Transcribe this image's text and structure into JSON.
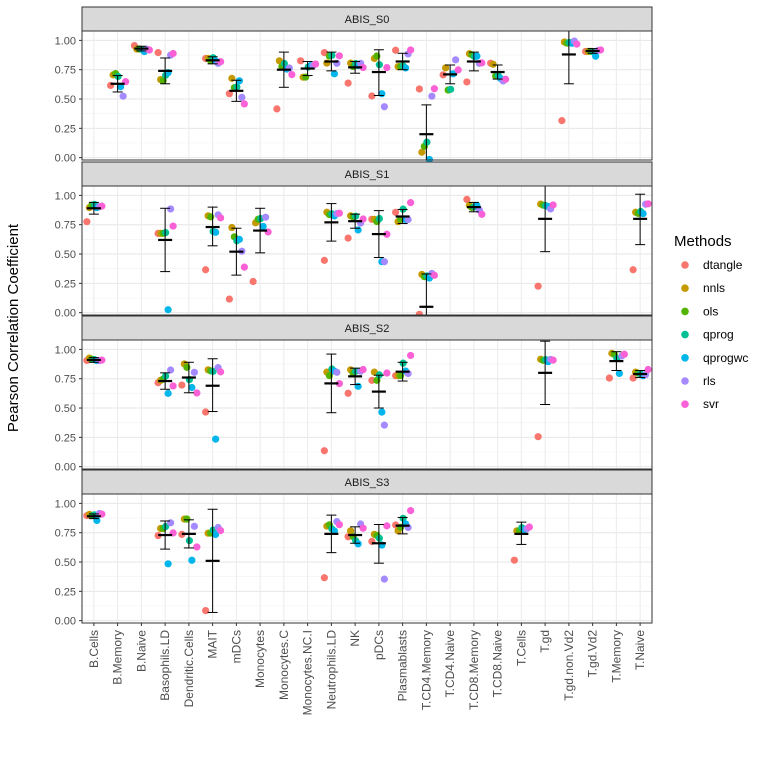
{
  "chart_data": {
    "type": "scatter",
    "ylabel": "Pearson Correlation Coefficient",
    "xlabel": "",
    "ylim": [
      -0.02,
      1.08
    ],
    "yticks": [
      0.0,
      0.25,
      0.5,
      0.75,
      1.0
    ],
    "ytick_labels": [
      "0.00",
      "0.25",
      "0.50",
      "0.75",
      "1.00"
    ],
    "grid": true,
    "legend_position": "right",
    "legend_title": "Methods",
    "series_names": [
      "dtangle",
      "nnls",
      "ols",
      "qprog",
      "qprogwc",
      "rls",
      "svr"
    ],
    "colors": {
      "dtangle": "#F8766D",
      "nnls": "#C49A00",
      "ols": "#53B400",
      "qprog": "#00C094",
      "qprogwc": "#00B6EB",
      "rls": "#A58AFF",
      "svr": "#FB61D7"
    },
    "categories": [
      "B.Cells",
      "B.Memory",
      "B.Naive",
      "Basophils.LD",
      "Dendritic.Cells",
      "MAIT",
      "mDCs",
      "Monocytes",
      "Monocytes.C",
      "Monocytes.NC.I",
      "Neutrophils.LD",
      "NK",
      "pDCs",
      "Plasmablasts",
      "T.CD4.Memory",
      "T.CD4.Naive",
      "T.CD8.Memory",
      "T.CD8.Naive",
      "T.Cells",
      "T.gd",
      "T.gd.non.Vd2",
      "T.gd.Vd2",
      "T.Memory",
      "T.Naive"
    ],
    "panels": [
      {
        "title": "ABIS_S0",
        "data": {
          "B.Memory": [
            0.62,
            0.7,
            0.72,
            0.69,
            0.61,
            0.52,
            0.65
          ],
          "B.Naive": [
            0.96,
            0.92,
            0.93,
            0.92,
            0.91,
            0.92,
            0.92
          ],
          "Basophils.LD": [
            0.9,
            0.66,
            0.66,
            0.7,
            0.73,
            0.87,
            0.89
          ],
          "MAIT": [
            0.85,
            0.84,
            0.83,
            0.85,
            0.83,
            0.8,
            0.82
          ],
          "mDCs": [
            0.55,
            0.67,
            0.6,
            0.6,
            0.66,
            0.51,
            0.46
          ],
          "Monocytes.C": [
            0.42,
            0.82,
            0.78,
            0.8,
            0.76,
            0.76,
            0.71
          ],
          "Monocytes.NC.I": [
            0.83,
            0.68,
            0.69,
            0.77,
            0.79,
            0.78,
            0.8
          ],
          "Neutrophils.LD": [
            0.9,
            0.8,
            0.87,
            0.87,
            0.72,
            0.8,
            0.87
          ],
          "NK": [
            0.64,
            0.8,
            0.78,
            0.8,
            0.79,
            0.8,
            0.77
          ],
          "pDCs": [
            0.53,
            0.84,
            0.87,
            0.79,
            0.55,
            0.43,
            0.77
          ],
          "Plasmablasts": [
            0.92,
            0.77,
            0.78,
            0.78,
            0.77,
            0.88,
            0.92
          ],
          "T.CD4.Memory": [
            0.59,
            0.04,
            0.1,
            0.13,
            -0.01,
            0.52,
            0.59
          ],
          "T.CD4.Naive": [
            0.71,
            0.76,
            0.58,
            0.58,
            0.72,
            0.83,
            0.75
          ],
          "T.CD8.Memory": [
            0.65,
            0.88,
            0.88,
            0.86,
            0.87,
            0.8,
            0.81
          ],
          "T.CD8.Naive": [
            0.81,
            0.79,
            0.7,
            0.7,
            0.68,
            0.65,
            0.67
          ],
          "T.gd.non.Vd2": [
            0.32,
            0.98,
            0.98,
            0.98,
            0.98,
            0.99,
            0.97
          ],
          "T.gd.Vd2": [
            0.91,
            0.9,
            0.91,
            0.9,
            0.87,
            0.91,
            0.92
          ]
        },
        "summary": {
          "B.Memory": [
            0.56,
            0.63,
            0.7
          ],
          "B.Naive": [
            0.91,
            0.93,
            0.95
          ],
          "Basophils.LD": [
            0.63,
            0.74,
            0.85
          ],
          "MAIT": [
            0.8,
            0.83,
            0.86
          ],
          "mDCs": [
            0.48,
            0.57,
            0.66
          ],
          "Monocytes.C": [
            0.6,
            0.75,
            0.9
          ],
          "Monocytes.NC.I": [
            0.7,
            0.76,
            0.82
          ],
          "Neutrophils.LD": [
            0.74,
            0.82,
            0.9
          ],
          "NK": [
            0.72,
            0.77,
            0.82
          ],
          "pDCs": [
            0.53,
            0.73,
            0.92
          ],
          "Plasmablasts": [
            0.75,
            0.82,
            0.89
          ],
          "T.CD4.Memory": [
            -0.05,
            0.2,
            0.45
          ],
          "T.CD4.Naive": [
            0.63,
            0.71,
            0.79
          ],
          "T.CD8.Memory": [
            0.74,
            0.82,
            0.9
          ],
          "T.CD8.Naive": [
            0.67,
            0.73,
            0.79
          ],
          "T.gd.non.Vd2": [
            0.63,
            0.88,
            1.12
          ],
          "T.gd.Vd2": [
            0.89,
            0.91,
            0.93
          ]
        }
      },
      {
        "title": "ABIS_S1",
        "data": {
          "B.Cells": [
            0.78,
            0.89,
            0.92,
            0.92,
            0.9,
            0.9,
            0.91
          ],
          "Basophils.LD": [
            0.68,
            0.67,
            0.68,
            0.68,
            0.03,
            0.88,
            0.74
          ],
          "MAIT": [
            0.37,
            0.82,
            0.82,
            0.69,
            0.69,
            0.83,
            0.81
          ],
          "mDCs": [
            0.12,
            0.72,
            0.65,
            0.61,
            0.63,
            0.52,
            0.39
          ],
          "Monocytes": [
            0.27,
            0.76,
            0.8,
            0.8,
            0.74,
            0.81,
            0.69
          ],
          "Neutrophils.LD": [
            0.45,
            0.85,
            0.84,
            0.84,
            0.83,
            0.84,
            0.85
          ],
          "NK": [
            0.64,
            0.82,
            0.82,
            0.82,
            0.71,
            0.76,
            0.8
          ],
          "pDCs": [
            0.8,
            0.79,
            0.78,
            0.8,
            0.44,
            0.43,
            0.67
          ],
          "Plasmablasts": [
            0.86,
            0.77,
            0.8,
            0.88,
            0.8,
            0.79,
            0.94
          ],
          "T.CD4.Memory": [
            -0.01,
            0.32,
            0.31,
            0.31,
            0.3,
            0.33,
            0.32
          ],
          "T.CD8.Memory": [
            0.97,
            0.91,
            0.9,
            0.9,
            0.92,
            0.87,
            0.84
          ],
          "T.gd": [
            0.23,
            0.92,
            0.92,
            0.91,
            0.91,
            0.88,
            0.92
          ],
          "T.Naive": [
            0.37,
            0.85,
            0.85,
            0.86,
            0.85,
            0.92,
            0.93
          ]
        },
        "summary": {
          "B.Cells": [
            0.84,
            0.89,
            0.94
          ],
          "Basophils.LD": [
            0.35,
            0.62,
            0.89
          ],
          "MAIT": [
            0.57,
            0.73,
            0.9
          ],
          "mDCs": [
            0.32,
            0.52,
            0.72
          ],
          "Monocytes": [
            0.51,
            0.7,
            0.89
          ],
          "Neutrophils.LD": [
            0.61,
            0.77,
            0.93
          ],
          "NK": [
            0.72,
            0.78,
            0.84
          ],
          "pDCs": [
            0.47,
            0.67,
            0.87
          ],
          "Plasmablasts": [
            0.76,
            0.82,
            0.88
          ],
          "T.CD4.Memory": [
            -0.22,
            0.05,
            0.33
          ],
          "T.CD8.Memory": [
            0.86,
            0.9,
            0.94
          ],
          "T.gd": [
            0.52,
            0.8,
            1.08
          ],
          "T.Naive": [
            0.58,
            0.8,
            1.01
          ]
        }
      },
      {
        "title": "ABIS_S2",
        "data": {
          "B.Cells": [
            0.91,
            0.92,
            0.92,
            0.91,
            0.91,
            0.9,
            0.91
          ],
          "Basophils.LD": [
            0.72,
            0.73,
            0.75,
            0.77,
            0.63,
            0.82,
            0.69
          ],
          "Dendritic.Cells": [
            0.7,
            0.87,
            0.85,
            0.74,
            0.68,
            0.8,
            0.63
          ],
          "MAIT": [
            0.47,
            0.82,
            0.82,
            0.81,
            0.24,
            0.84,
            0.81
          ],
          "Neutrophils.LD": [
            0.14,
            0.8,
            0.78,
            0.83,
            0.82,
            0.8,
            0.71
          ],
          "NK": [
            0.63,
            0.82,
            0.8,
            0.81,
            0.69,
            0.81,
            0.83
          ],
          "pDCs": [
            0.74,
            0.8,
            0.74,
            0.78,
            0.47,
            0.35,
            0.8
          ],
          "Plasmablasts": [
            0.78,
            0.77,
            0.78,
            0.88,
            0.82,
            0.79,
            0.95
          ],
          "T.gd": [
            0.26,
            0.91,
            0.91,
            0.91,
            0.9,
            0.91,
            0.91
          ],
          "T.Memory": [
            0.76,
            0.96,
            0.96,
            0.92,
            0.8,
            0.94,
            0.96
          ],
          "T.Naive": [
            0.76,
            0.8,
            0.8,
            0.79,
            0.78,
            0.78,
            0.83
          ]
        },
        "summary": {
          "B.Cells": [
            0.89,
            0.91,
            0.93
          ],
          "Basophils.LD": [
            0.66,
            0.73,
            0.8
          ],
          "Dendritic.Cells": [
            0.63,
            0.76,
            0.89
          ],
          "MAIT": [
            0.47,
            0.69,
            0.92
          ],
          "Neutrophils.LD": [
            0.46,
            0.71,
            0.96
          ],
          "NK": [
            0.7,
            0.77,
            0.84
          ],
          "pDCs": [
            0.5,
            0.64,
            0.78
          ],
          "Plasmablasts": [
            0.73,
            0.81,
            0.89
          ],
          "T.gd": [
            0.53,
            0.8,
            1.07
          ],
          "T.Memory": [
            0.82,
            0.9,
            0.98
          ],
          "T.Naive": [
            0.76,
            0.79,
            0.82
          ]
        }
      },
      {
        "title": "ABIS_S3",
        "data": {
          "B.Cells": [
            0.9,
            0.9,
            0.9,
            0.9,
            0.86,
            0.91,
            0.91
          ],
          "Basophils.LD": [
            0.73,
            0.78,
            0.79,
            0.8,
            0.49,
            0.83,
            0.75
          ],
          "Dendritic.Cells": [
            0.74,
            0.86,
            0.87,
            0.68,
            0.52,
            0.8,
            0.63
          ],
          "MAIT": [
            0.09,
            0.74,
            0.75,
            0.77,
            0.74,
            0.79,
            0.77
          ],
          "Neutrophils.LD": [
            0.37,
            0.8,
            0.82,
            0.78,
            0.77,
            0.84,
            0.82
          ],
          "NK": [
            0.72,
            0.76,
            0.72,
            0.68,
            0.66,
            0.82,
            0.79
          ],
          "pDCs": [
            0.68,
            0.73,
            0.73,
            0.7,
            0.65,
            0.35,
            0.81
          ],
          "Plasmablasts": [
            0.82,
            0.76,
            0.8,
            0.87,
            0.83,
            0.79,
            0.94
          ],
          "T.Cells": [
            0.52,
            0.76,
            0.77,
            0.79,
            0.78,
            0.78,
            0.8
          ]
        },
        "summary": {
          "B.Cells": [
            0.87,
            0.89,
            0.91
          ],
          "Basophils.LD": [
            0.61,
            0.73,
            0.85
          ],
          "Dendritic.Cells": [
            0.62,
            0.74,
            0.86
          ],
          "MAIT": [
            0.07,
            0.51,
            0.95
          ],
          "Neutrophils.LD": [
            0.58,
            0.74,
            0.9
          ],
          "NK": [
            0.66,
            0.73,
            0.8
          ],
          "pDCs": [
            0.49,
            0.66,
            0.82
          ],
          "Plasmablasts": [
            0.74,
            0.81,
            0.88
          ],
          "T.Cells": [
            0.65,
            0.74,
            0.84
          ]
        }
      }
    ]
  }
}
